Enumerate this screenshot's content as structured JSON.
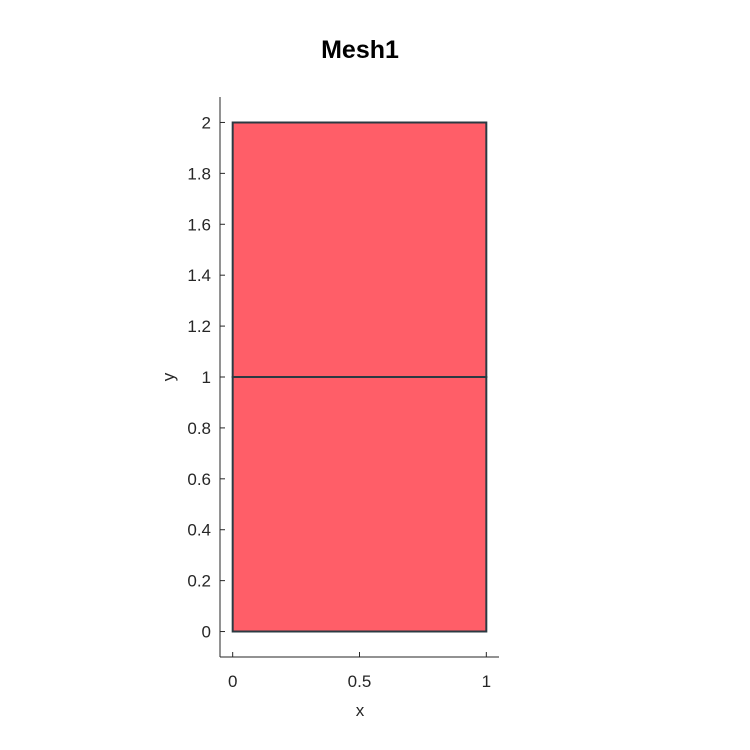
{
  "chart_data": {
    "type": "mesh",
    "title": "Mesh1",
    "xlabel": "x",
    "ylabel": "y",
    "xlim": [
      -0.05,
      1.05
    ],
    "ylim": [
      -0.1,
      2.1
    ],
    "xticks": [
      0,
      0.5,
      1
    ],
    "xtick_labels": [
      "0",
      "0.5",
      "1"
    ],
    "yticks": [
      0,
      0.2,
      0.4,
      0.6,
      0.8,
      1,
      1.2,
      1.4,
      1.6,
      1.8,
      2
    ],
    "ytick_labels": [
      "0",
      "0.2",
      "0.4",
      "0.6",
      "0.8",
      "1",
      "1.2",
      "1.4",
      "1.6",
      "1.8",
      "2"
    ],
    "grid": false,
    "elements": [
      {
        "vertices": [
          [
            0,
            0
          ],
          [
            1,
            0
          ],
          [
            1,
            1
          ],
          [
            0,
            1
          ]
        ]
      },
      {
        "vertices": [
          [
            0,
            1
          ],
          [
            1,
            1
          ],
          [
            1,
            2
          ],
          [
            0,
            2
          ]
        ]
      }
    ],
    "colors": {
      "face": "#ff5e68",
      "edge": "#2b3a42",
      "axis": "#262626",
      "text": "#262626",
      "title": "#000000"
    }
  }
}
